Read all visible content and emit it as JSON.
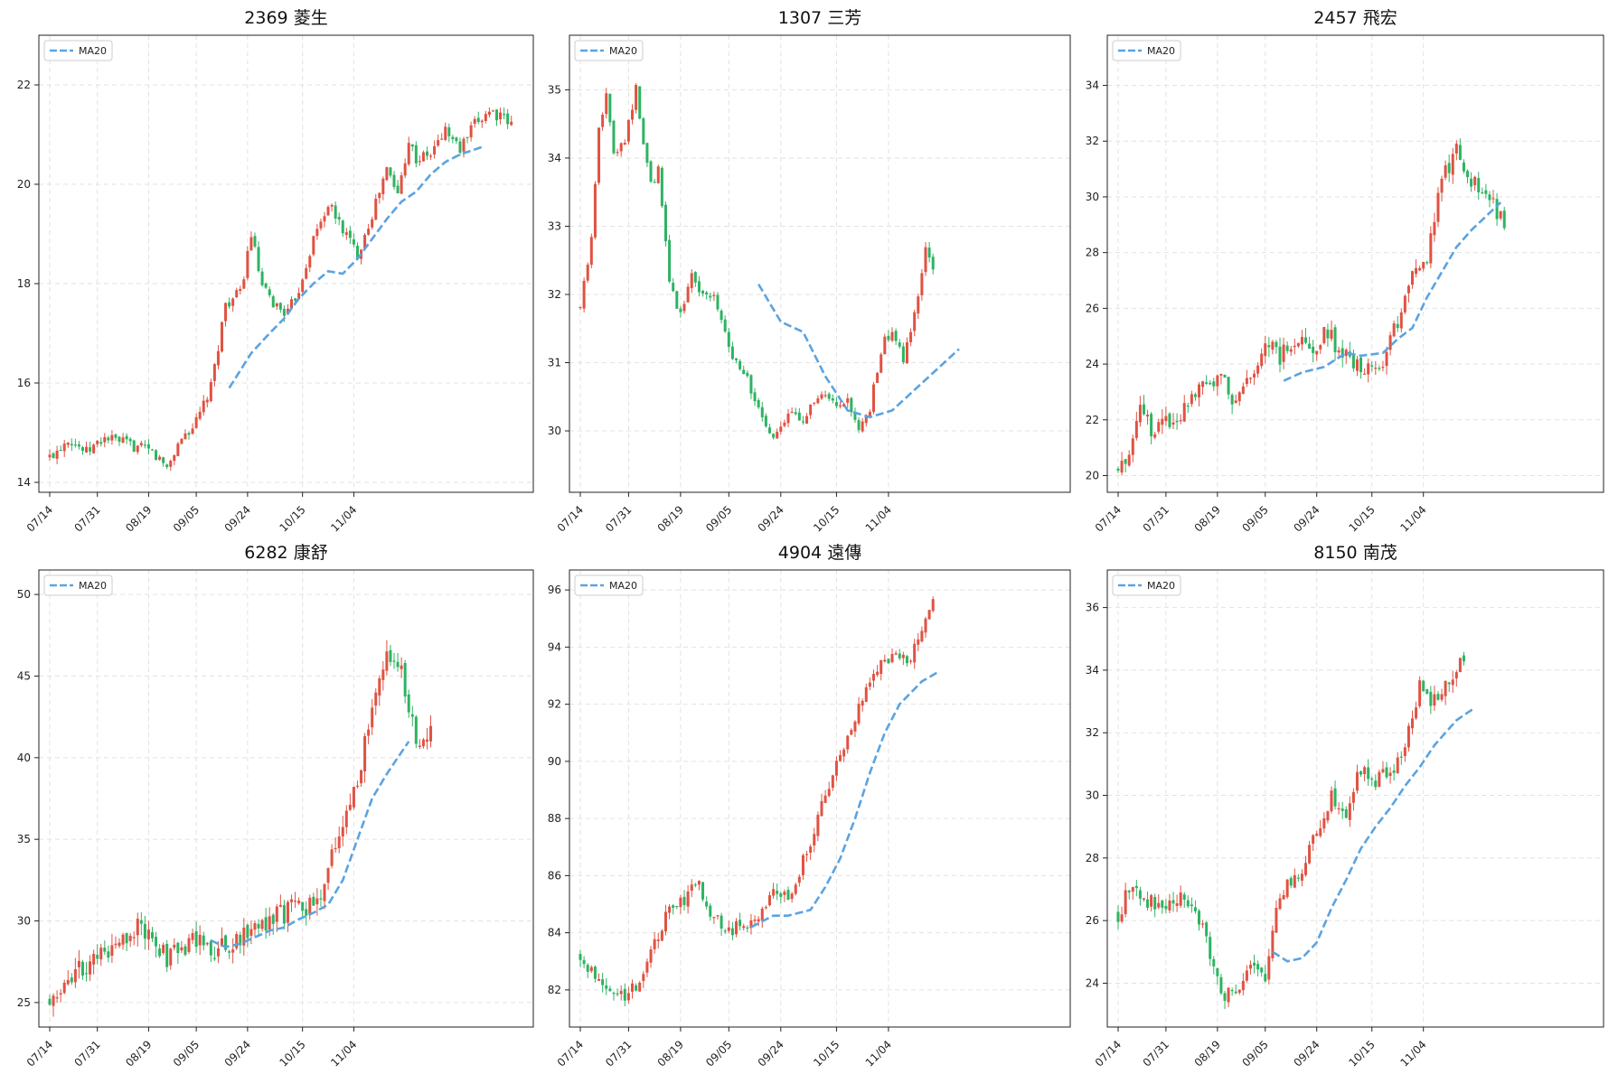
{
  "colors": {
    "up": "#e05242",
    "down": "#2eb362",
    "ma": "#5ba3e0",
    "grid": "#e2e2e2"
  },
  "legend_label": "MA20",
  "chart_data": [
    {
      "type": "candlestick",
      "title": "2369 菱生",
      "x_ticks": [
        "07/14",
        "07/31",
        "08/19",
        "09/05",
        "09/24",
        "10/15",
        "11/04"
      ],
      "y_ticks": [
        14,
        16,
        18,
        20,
        22
      ],
      "ylim": [
        13.8,
        23.0
      ],
      "legend": "top-left",
      "grid": true,
      "close_path": [
        [
          0,
          14.5
        ],
        [
          5,
          14.9
        ],
        [
          10,
          14.6
        ],
        [
          15,
          14.9
        ],
        [
          20,
          14.8
        ],
        [
          24,
          14.7
        ],
        [
          28,
          14.6
        ],
        [
          32,
          14.3
        ],
        [
          36,
          14.9
        ],
        [
          40,
          15.2
        ],
        [
          44,
          15.9
        ],
        [
          48,
          17.6
        ],
        [
          52,
          17.8
        ],
        [
          55,
          19.0
        ],
        [
          58,
          17.9
        ],
        [
          61,
          17.6
        ],
        [
          65,
          17.4
        ],
        [
          68,
          17.9
        ],
        [
          72,
          18.9
        ],
        [
          76,
          19.6
        ],
        [
          80,
          19.1
        ],
        [
          84,
          18.6
        ],
        [
          88,
          19.4
        ],
        [
          92,
          20.3
        ],
        [
          95,
          19.8
        ],
        [
          98,
          20.9
        ],
        [
          100,
          20.5
        ],
        [
          104,
          20.6
        ],
        [
          108,
          21.1
        ],
        [
          112,
          20.7
        ],
        [
          116,
          21.2
        ],
        [
          120,
          21.5
        ],
        [
          126,
          21.2
        ]
      ],
      "ma_path": [
        [
          49,
          15.9
        ],
        [
          55,
          16.6
        ],
        [
          60,
          17.0
        ],
        [
          64,
          17.3
        ],
        [
          68,
          17.7
        ],
        [
          72,
          18.0
        ],
        [
          76,
          18.25
        ],
        [
          80,
          18.2
        ],
        [
          84,
          18.5
        ],
        [
          88,
          18.9
        ],
        [
          92,
          19.3
        ],
        [
          96,
          19.65
        ],
        [
          100,
          19.85
        ],
        [
          104,
          20.2
        ],
        [
          108,
          20.45
        ],
        [
          112,
          20.6
        ],
        [
          118,
          20.75
        ]
      ],
      "volatility": 0.75
    },
    {
      "type": "candlestick",
      "title": "1307 三芳",
      "x_ticks": [
        "07/14",
        "07/31",
        "08/19",
        "09/05",
        "09/24",
        "10/15",
        "11/04"
      ],
      "y_ticks": [
        30,
        31,
        32,
        33,
        34,
        35
      ],
      "ylim": [
        29.1,
        35.8
      ],
      "legend": "top-left",
      "grid": true,
      "close_path": [
        [
          0,
          31.8
        ],
        [
          3,
          32.8
        ],
        [
          5,
          34.5
        ],
        [
          7,
          34.9
        ],
        [
          9,
          34.1
        ],
        [
          12,
          34.3
        ],
        [
          15,
          35.0
        ],
        [
          17,
          34.2
        ],
        [
          19,
          33.6
        ],
        [
          21,
          33.8
        ],
        [
          24,
          32.2
        ],
        [
          27,
          31.7
        ],
        [
          30,
          32.3
        ],
        [
          33,
          32.0
        ],
        [
          36,
          32.0
        ],
        [
          40,
          31.2
        ],
        [
          44,
          30.9
        ],
        [
          48,
          30.3
        ],
        [
          51,
          29.9
        ],
        [
          54,
          30.0
        ],
        [
          57,
          30.3
        ],
        [
          60,
          30.2
        ],
        [
          63,
          30.4
        ],
        [
          66,
          30.5
        ],
        [
          69,
          30.3
        ],
        [
          72,
          30.4
        ],
        [
          75,
          30.0
        ],
        [
          78,
          30.3
        ],
        [
          81,
          31.2
        ],
        [
          84,
          31.5
        ],
        [
          87,
          31.0
        ],
        [
          90,
          31.7
        ],
        [
          93,
          32.7
        ],
        [
          95,
          32.3
        ]
      ],
      "ma_path": [
        [
          48,
          32.15
        ],
        [
          54,
          31.6
        ],
        [
          60,
          31.45
        ],
        [
          66,
          30.8
        ],
        [
          72,
          30.3
        ],
        [
          78,
          30.2
        ],
        [
          84,
          30.3
        ],
        [
          90,
          30.6
        ],
        [
          96,
          30.9
        ],
        [
          102,
          31.2
        ]
      ],
      "x_scale": 0.99,
      "volatility": 0.7
    },
    {
      "type": "candlestick",
      "title": "2457 飛宏",
      "x_ticks": [
        "07/14",
        "07/31",
        "08/19",
        "09/05",
        "09/24",
        "10/15",
        "11/04"
      ],
      "y_ticks": [
        20,
        22,
        24,
        26,
        28,
        30,
        32,
        34
      ],
      "ylim": [
        19.4,
        35.8
      ],
      "legend": "top-left",
      "grid": true,
      "close_path": [
        [
          0,
          20.2
        ],
        [
          3,
          20.8
        ],
        [
          6,
          22.8
        ],
        [
          9,
          21.6
        ],
        [
          12,
          22.1
        ],
        [
          16,
          22.0
        ],
        [
          20,
          23.0
        ],
        [
          24,
          23.5
        ],
        [
          28,
          23.4
        ],
        [
          32,
          22.6
        ],
        [
          36,
          23.5
        ],
        [
          40,
          24.8
        ],
        [
          44,
          24.2
        ],
        [
          48,
          25.0
        ],
        [
          52,
          24.4
        ],
        [
          56,
          25.2
        ],
        [
          60,
          24.6
        ],
        [
          64,
          23.9
        ],
        [
          68,
          23.8
        ],
        [
          72,
          24.1
        ],
        [
          76,
          25.5
        ],
        [
          80,
          27.5
        ],
        [
          84,
          27.8
        ],
        [
          88,
          30.5
        ],
        [
          92,
          31.8
        ],
        [
          96,
          30.6
        ],
        [
          100,
          30.0
        ],
        [
          105,
          29.2
        ]
      ],
      "ma_path": [
        [
          45,
          23.4
        ],
        [
          50,
          23.7
        ],
        [
          56,
          23.9
        ],
        [
          62,
          24.4
        ],
        [
          66,
          24.3
        ],
        [
          72,
          24.4
        ],
        [
          76,
          24.9
        ],
        [
          80,
          25.3
        ],
        [
          84,
          26.4
        ],
        [
          88,
          27.3
        ],
        [
          92,
          28.2
        ],
        [
          96,
          28.8
        ],
        [
          100,
          29.3
        ],
        [
          104,
          29.8
        ]
      ],
      "volatility": 1.2
    },
    {
      "type": "candlestick",
      "title": "6282 康舒",
      "x_ticks": [
        "07/14",
        "07/31",
        "08/19",
        "09/05",
        "09/24",
        "10/15",
        "11/04"
      ],
      "y_ticks": [
        25,
        30,
        35,
        40,
        45,
        50
      ],
      "ylim": [
        23.5,
        51.5
      ],
      "legend": "top-left",
      "grid": true,
      "close_path": [
        [
          0,
          25.1
        ],
        [
          4,
          26.5
        ],
        [
          8,
          27.0
        ],
        [
          12,
          27.6
        ],
        [
          16,
          27.9
        ],
        [
          20,
          29.0
        ],
        [
          24,
          29.5
        ],
        [
          28,
          29.0
        ],
        [
          32,
          27.6
        ],
        [
          36,
          28.3
        ],
        [
          40,
          28.9
        ],
        [
          44,
          28.2
        ],
        [
          48,
          28.6
        ],
        [
          52,
          29.0
        ],
        [
          56,
          29.8
        ],
        [
          60,
          30.1
        ],
        [
          64,
          30.4
        ],
        [
          68,
          31.0
        ],
        [
          72,
          31.0
        ],
        [
          76,
          33.0
        ],
        [
          80,
          36.0
        ],
        [
          84,
          38.5
        ],
        [
          88,
          43.0
        ],
        [
          92,
          47.0
        ],
        [
          96,
          45.0
        ],
        [
          100,
          41.0
        ],
        [
          104,
          41.5
        ]
      ],
      "ma_path": [
        [
          44,
          28.8
        ],
        [
          48,
          28.4
        ],
        [
          52,
          28.6
        ],
        [
          56,
          29.0
        ],
        [
          60,
          29.4
        ],
        [
          64,
          29.6
        ],
        [
          68,
          30.1
        ],
        [
          72,
          30.5
        ],
        [
          76,
          31.0
        ],
        [
          80,
          32.5
        ],
        [
          84,
          35.0
        ],
        [
          88,
          37.5
        ],
        [
          92,
          39.0
        ],
        [
          98,
          41.0
        ]
      ],
      "volatility": 1.4
    },
    {
      "type": "candlestick",
      "title": "4904 遠傳",
      "x_ticks": [
        "07/14",
        "07/31",
        "08/19",
        "09/05",
        "09/24",
        "10/15",
        "11/04"
      ],
      "y_ticks": [
        82,
        84,
        86,
        88,
        90,
        92,
        94,
        96
      ],
      "ylim": [
        80.7,
        96.7
      ],
      "legend": "top-left",
      "grid": true,
      "close_path": [
        [
          0,
          83.2
        ],
        [
          4,
          82.5
        ],
        [
          8,
          82.2
        ],
        [
          12,
          81.8
        ],
        [
          16,
          82.3
        ],
        [
          20,
          83.6
        ],
        [
          24,
          84.8
        ],
        [
          28,
          85.2
        ],
        [
          32,
          85.7
        ],
        [
          36,
          84.5
        ],
        [
          40,
          84.0
        ],
        [
          44,
          84.3
        ],
        [
          48,
          84.5
        ],
        [
          52,
          85.5
        ],
        [
          56,
          85.2
        ],
        [
          60,
          86.5
        ],
        [
          64,
          88.0
        ],
        [
          68,
          89.5
        ],
        [
          72,
          90.8
        ],
        [
          76,
          92.3
        ],
        [
          80,
          93.2
        ],
        [
          84,
          93.8
        ],
        [
          88,
          93.5
        ],
        [
          92,
          94.5
        ],
        [
          95,
          95.5
        ]
      ],
      "ma_path": [
        [
          46,
          84.2
        ],
        [
          52,
          84.6
        ],
        [
          56,
          84.6
        ],
        [
          62,
          84.8
        ],
        [
          66,
          85.6
        ],
        [
          70,
          86.6
        ],
        [
          74,
          88.0
        ],
        [
          78,
          89.6
        ],
        [
          82,
          91.0
        ],
        [
          86,
          92.0
        ],
        [
          92,
          92.8
        ],
        [
          96,
          93.1
        ]
      ],
      "volatility": 0.9
    },
    {
      "type": "candlestick",
      "title": "8150 南茂",
      "x_ticks": [
        "07/14",
        "07/31",
        "08/19",
        "09/05",
        "09/24",
        "10/15",
        "11/04"
      ],
      "y_ticks": [
        24,
        26,
        28,
        30,
        32,
        34,
        36
      ],
      "ylim": [
        22.6,
        37.2
      ],
      "legend": "top-left",
      "grid": true,
      "close_path": [
        [
          0,
          26.2
        ],
        [
          4,
          27.2
        ],
        [
          8,
          26.6
        ],
        [
          12,
          26.4
        ],
        [
          16,
          26.6
        ],
        [
          20,
          26.7
        ],
        [
          24,
          25.5
        ],
        [
          28,
          23.6
        ],
        [
          32,
          23.8
        ],
        [
          36,
          24.5
        ],
        [
          40,
          24.0
        ],
        [
          43,
          26.5
        ],
        [
          46,
          27.2
        ],
        [
          50,
          27.5
        ],
        [
          54,
          28.8
        ],
        [
          58,
          30.0
        ],
        [
          62,
          29.5
        ],
        [
          66,
          30.8
        ],
        [
          70,
          30.4
        ],
        [
          74,
          30.8
        ],
        [
          78,
          31.5
        ],
        [
          82,
          33.5
        ],
        [
          86,
          33.0
        ],
        [
          90,
          33.8
        ],
        [
          94,
          34.5
        ]
      ],
      "ma_path": [
        [
          42,
          25.0
        ],
        [
          46,
          24.7
        ],
        [
          50,
          24.8
        ],
        [
          54,
          25.3
        ],
        [
          58,
          26.4
        ],
        [
          62,
          27.3
        ],
        [
          66,
          28.3
        ],
        [
          70,
          29.0
        ],
        [
          74,
          29.6
        ],
        [
          78,
          30.3
        ],
        [
          82,
          30.9
        ],
        [
          86,
          31.6
        ],
        [
          92,
          32.4
        ],
        [
          97,
          32.8
        ]
      ],
      "volatility": 1.1
    }
  ]
}
